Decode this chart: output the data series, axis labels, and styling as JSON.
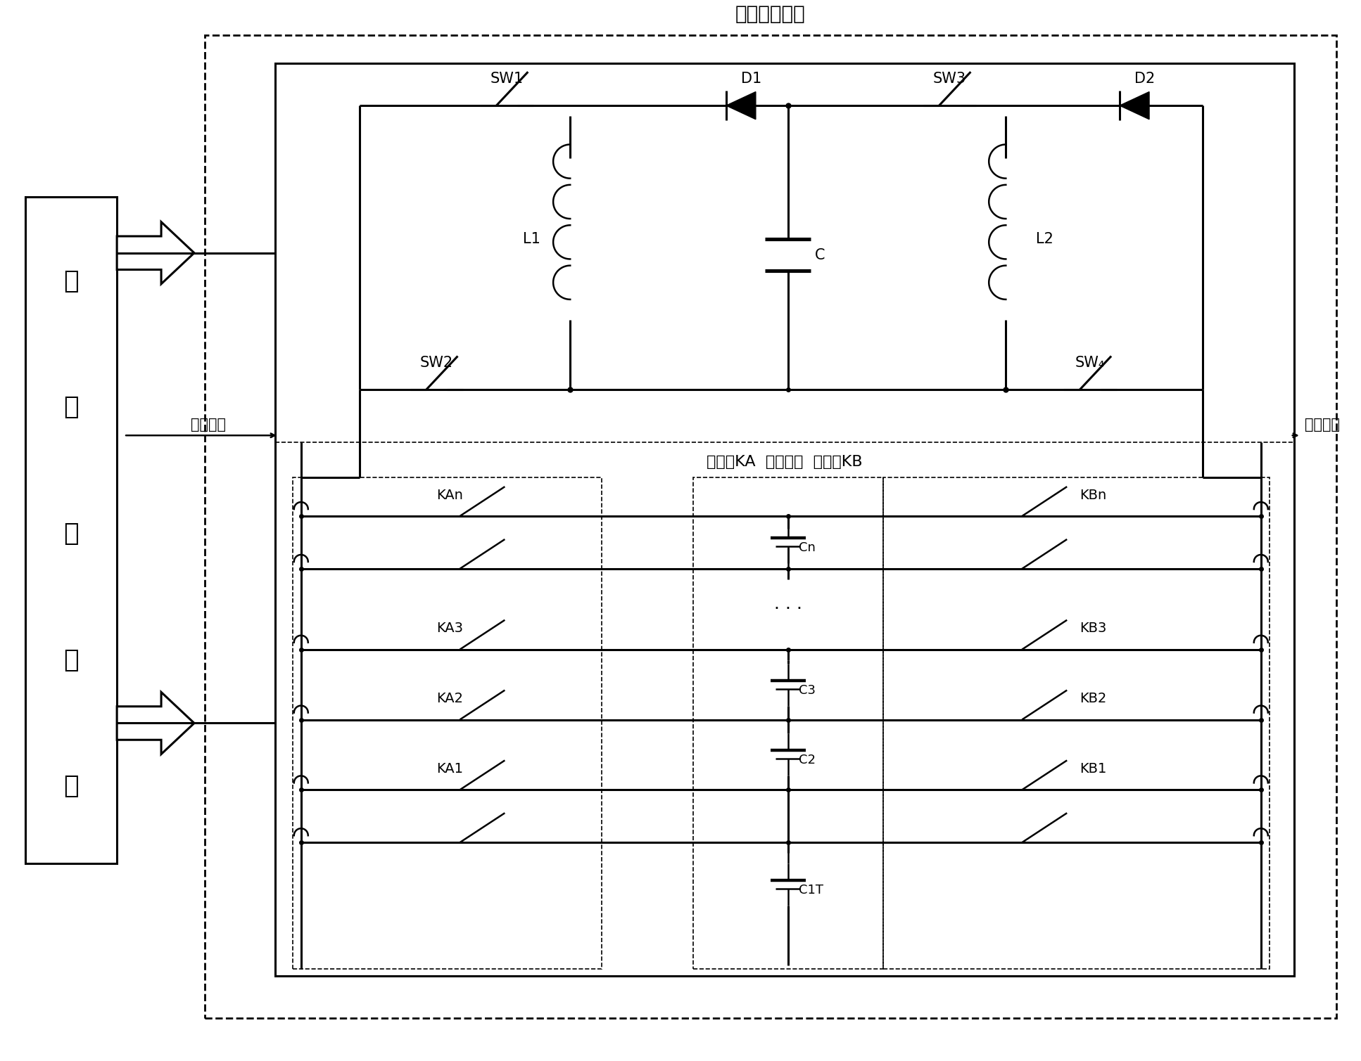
{
  "title": "能量转移电路",
  "bg_color": "#ffffff",
  "line_color": "#000000",
  "fig_width": 19.34,
  "fig_height": 15.09,
  "labels": {
    "title": "能量转移电路",
    "controller": [
      "均",
      "衡",
      "控",
      "制",
      "器"
    ],
    "discharge_bus": "放电总线",
    "charge_bus": "充电总线",
    "SW1": "SW1",
    "D1": "D1",
    "SW3": "SW3",
    "D2": "D2",
    "L1": "L1",
    "C": "C",
    "L2": "L2",
    "SW2": "SW2",
    "SW4": "SW₄",
    "header": "开关组KA  电池模块  开关组KB",
    "KAn": "KAn",
    "KBn": "KBn",
    "Cn": "Cn",
    "KA3": "KA3",
    "KB3": "KB3",
    "KA2": "KA2",
    "C3": "C3",
    "KB2": "KB2",
    "KA1": "KA1",
    "C2": "C2",
    "KB1": "KB1",
    "C1": "C1T"
  }
}
